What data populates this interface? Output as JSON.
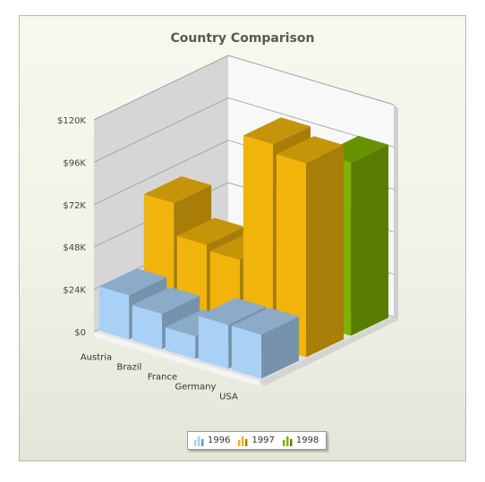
{
  "chart_data": {
    "type": "bar",
    "title": "Country Comparison",
    "categories": [
      "Austria",
      "Brazil",
      "France",
      "Germany",
      "USA"
    ],
    "y_ticks": [
      "$0",
      "$24K",
      "$48K",
      "$72K",
      "$96K",
      "$120K"
    ],
    "ylim": [
      0,
      120000
    ],
    "series": [
      {
        "name": "1996",
        "color": "#a9d0f5",
        "values": [
          25000,
          20000,
          13000,
          25000,
          25000
        ]
      },
      {
        "name": "1997",
        "color": "#f0b40b",
        "values": [
          65000,
          47000,
          44000,
          115000,
          110000
        ]
      },
      {
        "name": "1998",
        "color": "#7db203",
        "values": [
          null,
          null,
          64000,
          55000,
          98000
        ]
      }
    ],
    "legend_position": "bottom-center",
    "grid": true,
    "style": "3d-column"
  }
}
